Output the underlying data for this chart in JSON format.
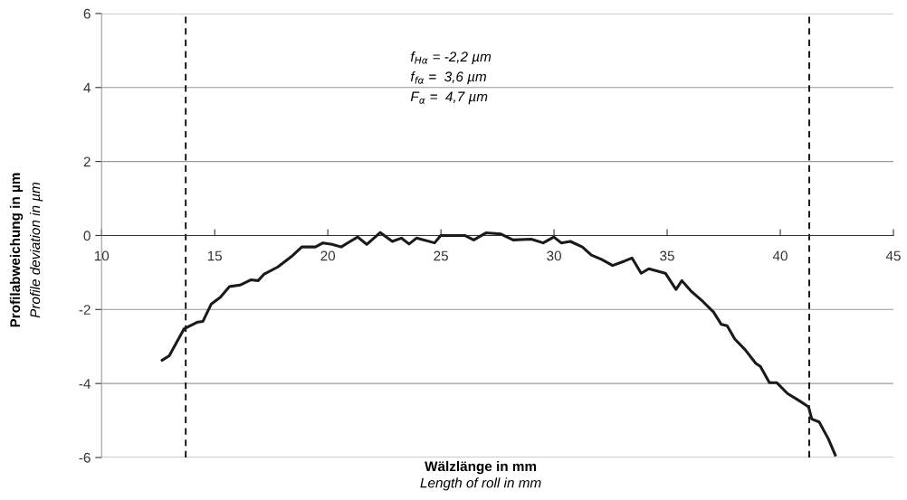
{
  "chart_data": {
    "type": "line",
    "xlabel": "Wälzlänge in mm\nLength of roll in mm",
    "ylabel": "Profilabweichung in µm\nProfile deviation in µm",
    "xlim": [
      10,
      45
    ],
    "xticks": [
      10,
      15,
      20,
      25,
      30,
      35,
      40,
      45
    ],
    "ylim": [
      -6,
      6
    ],
    "yticks": [
      -6,
      -4,
      -2,
      0,
      2,
      4,
      6
    ],
    "grid": "y",
    "marker": "none",
    "line_style": "solid",
    "annotations": [
      "f$_{Hα}$ = -2,2 µm",
      "f$_{fα}$ =  3,6 µm",
      "F$_{α}$ =  4,7 µm"
    ],
    "ref_lines": [
      {
        "axis": "x",
        "value": 13.72,
        "label": null,
        "color": "#000000",
        "line_style": "dashed"
      },
      {
        "axis": "x",
        "value": 41.28,
        "label": null,
        "color": "#000000",
        "line_style": "dashed"
      }
    ],
    "series": [
      {
        "color": "#1a1a1a",
        "x": [
          12.68,
          12.99,
          13.65,
          14.25,
          14.48,
          14.85,
          15.25,
          15.65,
          16.12,
          16.59,
          16.92,
          17.19,
          17.79,
          18.39,
          18.85,
          19.45,
          19.79,
          20.19,
          20.59,
          20.99,
          21.32,
          21.72,
          22.32,
          22.85,
          23.25,
          23.59,
          23.92,
          24.72,
          24.99,
          26.05,
          26.45,
          26.99,
          27.65,
          28.19,
          28.99,
          29.52,
          29.99,
          30.32,
          30.72,
          31.25,
          31.65,
          32.12,
          32.59,
          33.12,
          33.45,
          33.85,
          34.19,
          34.92,
          35.39,
          35.65,
          36.05,
          36.59,
          37.05,
          37.39,
          37.65,
          37.99,
          38.45,
          38.92,
          39.12,
          39.52,
          39.85,
          40.32,
          40.85,
          41.25,
          41.39,
          41.72,
          42.12,
          42.43
        ],
        "values": [
          -3.37,
          -3.25,
          -2.52,
          -2.34,
          -2.32,
          -1.85,
          -1.67,
          -1.38,
          -1.34,
          -1.2,
          -1.22,
          -1.04,
          -0.85,
          -0.57,
          -0.31,
          -0.31,
          -0.2,
          -0.24,
          -0.31,
          -0.16,
          -0.04,
          -0.24,
          0.08,
          -0.16,
          -0.07,
          -0.23,
          -0.07,
          -0.2,
          0.0,
          0.0,
          -0.12,
          0.07,
          0.04,
          -0.12,
          -0.1,
          -0.2,
          -0.04,
          -0.2,
          -0.16,
          -0.31,
          -0.53,
          -0.65,
          -0.81,
          -0.69,
          -0.61,
          -1.02,
          -0.9,
          -1.02,
          -1.46,
          -1.22,
          -1.5,
          -1.79,
          -2.07,
          -2.4,
          -2.44,
          -2.8,
          -3.09,
          -3.46,
          -3.54,
          -3.98,
          -3.98,
          -4.27,
          -4.47,
          -4.63,
          -4.96,
          -5.04,
          -5.49,
          -5.93
        ]
      }
    ]
  }
}
